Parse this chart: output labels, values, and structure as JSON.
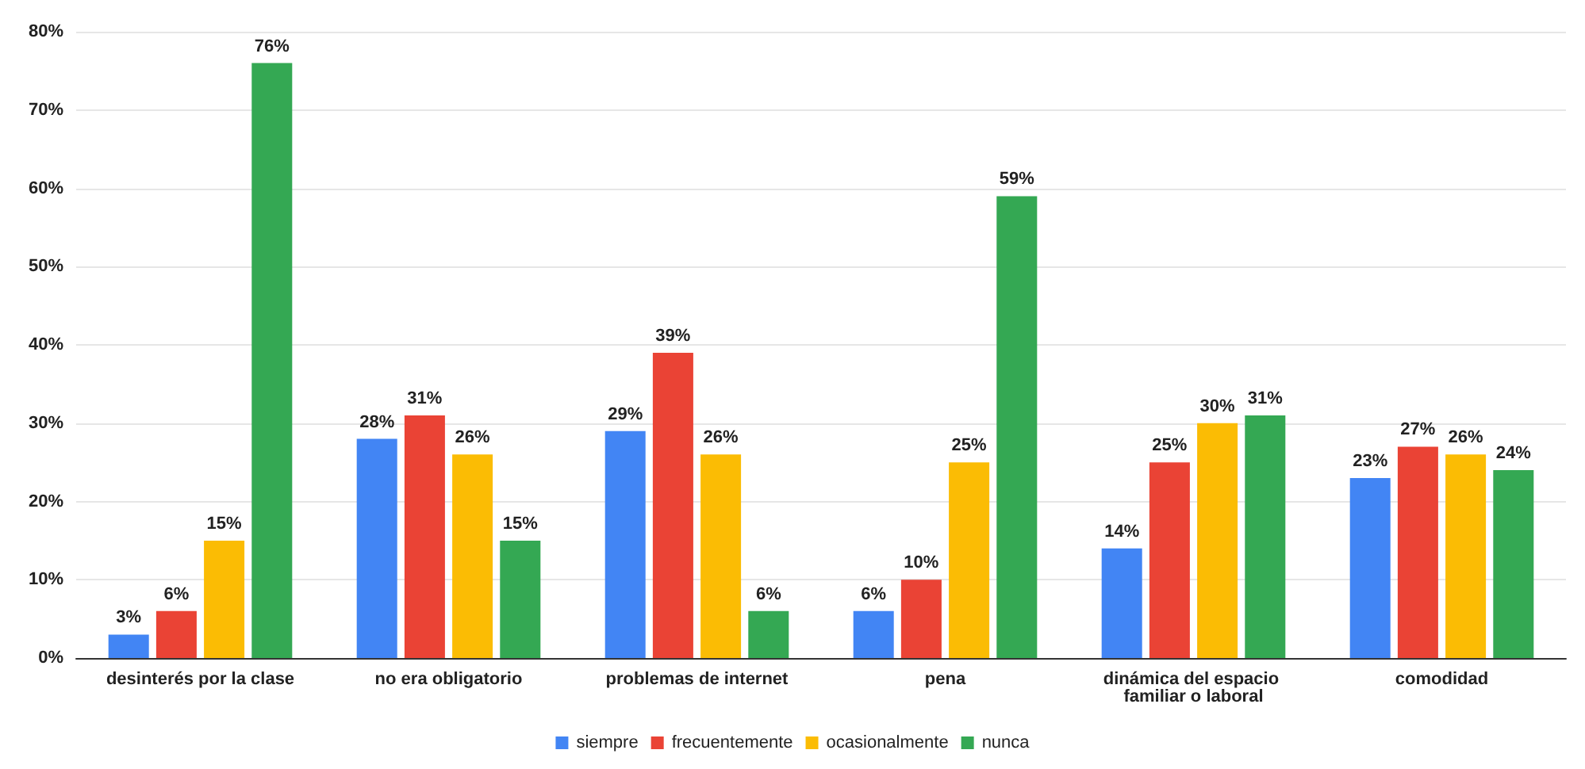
{
  "chart_data": {
    "type": "bar",
    "categories": [
      "desinterés por la clase",
      "no era obligatorio",
      "problemas de internet",
      "pena",
      "dinámica del espacio familiar o laboral",
      "comodidad"
    ],
    "series": [
      {
        "name": "siempre",
        "color": "#4285f4",
        "values": [
          3,
          28,
          29,
          6,
          14,
          23
        ],
        "value_labels": [
          "3%",
          "28%",
          "29%",
          "6%",
          "14%",
          "23%"
        ]
      },
      {
        "name": "frecuentemente",
        "color": "#ea4335",
        "values": [
          6,
          31,
          39,
          10,
          25,
          27
        ],
        "value_labels": [
          "6%",
          "31%",
          "39%",
          "10%",
          "25%",
          "27%"
        ]
      },
      {
        "name": "ocasionalmente",
        "color": "#fbbc04",
        "values": [
          15,
          26,
          26,
          25,
          30,
          26
        ],
        "value_labels": [
          "15%",
          "26%",
          "26%",
          "25%",
          "30%",
          "26%"
        ]
      },
      {
        "name": "nunca",
        "color": "#34a853",
        "values": [
          76,
          15,
          6,
          59,
          31,
          24
        ],
        "value_labels": [
          "76%",
          "15%",
          "6%",
          "59%",
          "31%",
          "24%"
        ]
      }
    ],
    "ylim": [
      0,
      80
    ],
    "yticks": [
      {
        "value": 0,
        "label": "0%"
      },
      {
        "value": 10,
        "label": "10%"
      },
      {
        "value": 20,
        "label": "20%"
      },
      {
        "value": 30,
        "label": "30%"
      },
      {
        "value": 40,
        "label": "40%"
      },
      {
        "value": 50,
        "label": "50%"
      },
      {
        "value": 60,
        "label": "60%"
      },
      {
        "value": 70,
        "label": "70%"
      },
      {
        "value": 80,
        "label": "80%"
      }
    ],
    "grid": "y",
    "legend": "bottom"
  }
}
